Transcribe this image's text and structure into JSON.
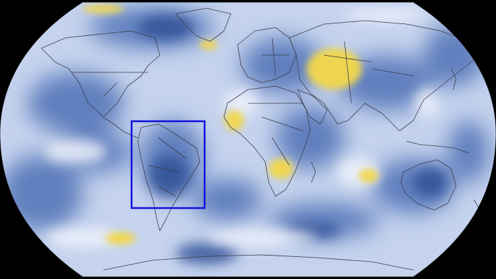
{
  "map": {
    "projection": "robinson",
    "background_color": "#000000",
    "ocean_base_color": "#c5d3ee",
    "cool_color": "#3f63ad",
    "deep_cool_color": "#2a4c94",
    "neutral_color": "#eef1fb",
    "warm_color": "#f2d74a",
    "border_color": "#3a3a48"
  },
  "highlight_box": {
    "region": "South America",
    "color": "#1111dd"
  }
}
